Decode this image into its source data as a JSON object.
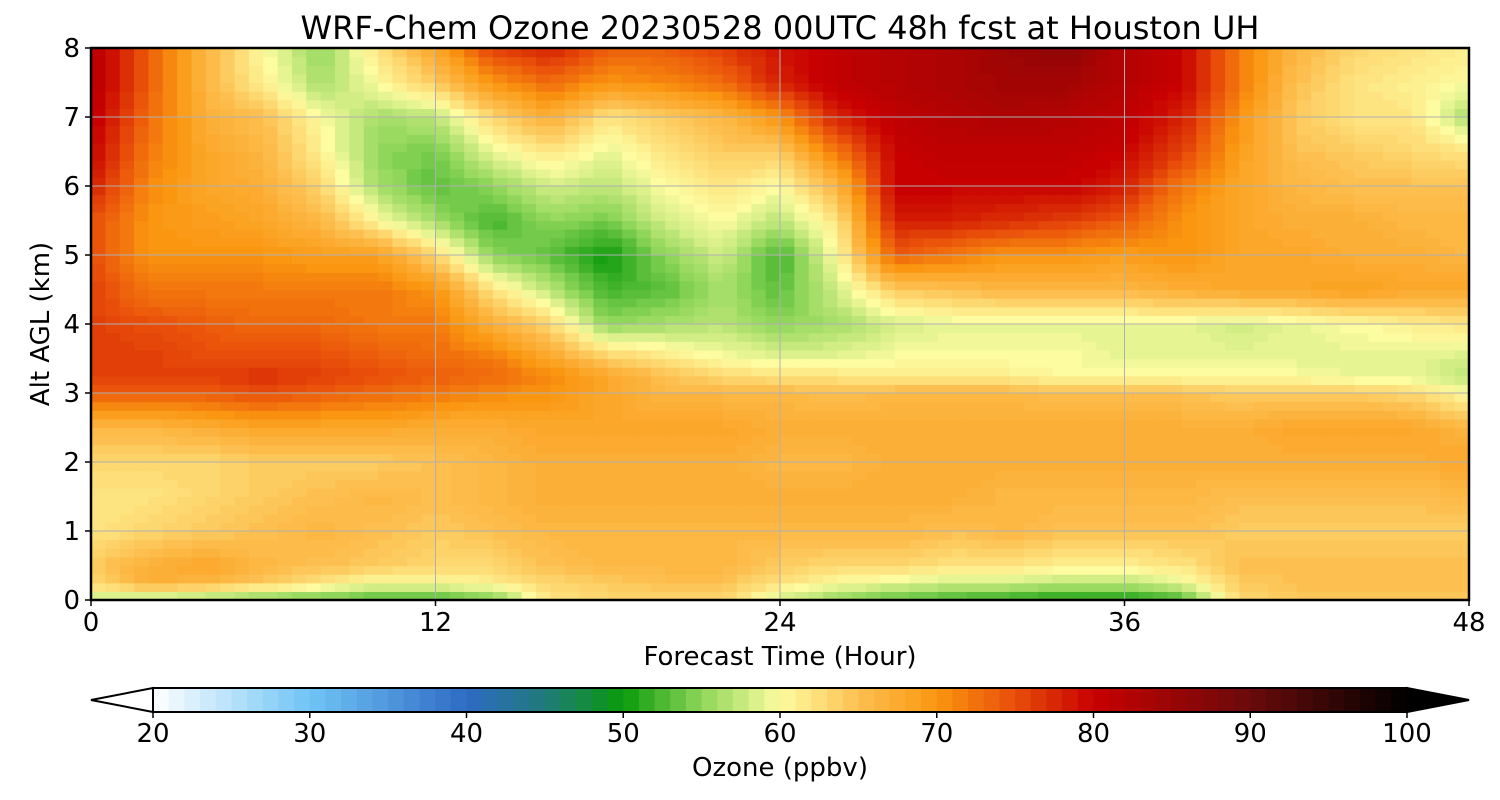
{
  "chart_data": {
    "type": "heatmap",
    "title": "WRF-Chem Ozone  20230528 00UTC 48h fcst at Houston UH",
    "xlabel": "Forecast Time (Hour)",
    "ylabel": "Alt AGL (km)",
    "xlim": [
      0,
      48
    ],
    "ylim": [
      0,
      8
    ],
    "xticks": [
      "0",
      "12",
      "24",
      "36",
      "48"
    ],
    "yticks": [
      "0",
      "1",
      "2",
      "3",
      "4",
      "5",
      "6",
      "7",
      "8"
    ],
    "grid": true,
    "x": [
      0,
      2,
      4,
      6,
      8,
      10,
      12,
      14,
      16,
      18,
      20,
      22,
      24,
      26,
      28,
      30,
      32,
      34,
      36,
      38,
      40,
      42,
      44,
      46,
      48
    ],
    "y": [
      0,
      0.25,
      0.5,
      1,
      1.5,
      2,
      2.5,
      3,
      3.25,
      3.5,
      4,
      4.5,
      5,
      5.5,
      6,
      6.5,
      7,
      7.5,
      8
    ],
    "z": [
      [
        57,
        56,
        55,
        54,
        53,
        52,
        52,
        54,
        62,
        63,
        63,
        63,
        58,
        55,
        53,
        52,
        51,
        50,
        50,
        52,
        63,
        64,
        64,
        64,
        64
      ],
      [
        63,
        67,
        66,
        64,
        62,
        60,
        60,
        61,
        63,
        64,
        65,
        65,
        62,
        60,
        59,
        58,
        58,
        57,
        57,
        59,
        64,
        65,
        65,
        65,
        65
      ],
      [
        64,
        67,
        68,
        66,
        65,
        64,
        63,
        63,
        65,
        66,
        66,
        66,
        64,
        63,
        63,
        62,
        62,
        61,
        61,
        62,
        65,
        65,
        65,
        65,
        65
      ],
      [
        62,
        63,
        64,
        65,
        66,
        65,
        64,
        65,
        66,
        66,
        66,
        66,
        66,
        66,
        66,
        65,
        66,
        65,
        65,
        65,
        64,
        64,
        64,
        64,
        64
      ],
      [
        62,
        62,
        63,
        64,
        65,
        66,
        65,
        66,
        67,
        67,
        67,
        67,
        67,
        67,
        67,
        67,
        66,
        66,
        66,
        66,
        65,
        65,
        65,
        65,
        66
      ],
      [
        63,
        63,
        63,
        64,
        64,
        64,
        65,
        66,
        67,
        67,
        67,
        67,
        66,
        66,
        67,
        67,
        67,
        67,
        67,
        67,
        67,
        67,
        67,
        67,
        68
      ],
      [
        66,
        66,
        67,
        68,
        68,
        68,
        67,
        67,
        68,
        68,
        68,
        68,
        67,
        67,
        67,
        67,
        67,
        67,
        67,
        67,
        67,
        68,
        68,
        68,
        66
      ],
      [
        74,
        74,
        74,
        75,
        74,
        73,
        72,
        71,
        70,
        68,
        66,
        66,
        66,
        65,
        66,
        66,
        66,
        65,
        65,
        65,
        64,
        64,
        64,
        63,
        60
      ],
      [
        76,
        76,
        76,
        77,
        76,
        75,
        74,
        73,
        71,
        68,
        65,
        63,
        62,
        62,
        61,
        61,
        61,
        60,
        60,
        60,
        60,
        60,
        59,
        59,
        57
      ],
      [
        76,
        76,
        75,
        75,
        75,
        74,
        73,
        72,
        68,
        64,
        62,
        60,
        59,
        59,
        60,
        60,
        60,
        60,
        59,
        59,
        59,
        59,
        59,
        59,
        58
      ],
      [
        76,
        75,
        74,
        73,
        73,
        72,
        72,
        67,
        63,
        55,
        56,
        57,
        55,
        56,
        58,
        59,
        59,
        59,
        59,
        59,
        58,
        59,
        60,
        61,
        62
      ],
      [
        76,
        72,
        72,
        72,
        72,
        72,
        70,
        62,
        57,
        52,
        53,
        56,
        53,
        58,
        64,
        65,
        66,
        66,
        66,
        67,
        68,
        68,
        69,
        68,
        68
      ],
      [
        75,
        70,
        70,
        70,
        69,
        69,
        63,
        55,
        53,
        50,
        55,
        58,
        52,
        60,
        74,
        72,
        70,
        70,
        69,
        70,
        68,
        68,
        67,
        67,
        66
      ],
      [
        75,
        70,
        69,
        68,
        66,
        60,
        56,
        52,
        55,
        54,
        58,
        60,
        57,
        62,
        78,
        78,
        77,
        76,
        74,
        70,
        68,
        67,
        67,
        66,
        66
      ],
      [
        78,
        71,
        68,
        67,
        63,
        56,
        53,
        55,
        58,
        57,
        60,
        62,
        60,
        66,
        80,
        80,
        80,
        80,
        78,
        72,
        68,
        66,
        65,
        65,
        65
      ],
      [
        80,
        72,
        68,
        66,
        61,
        55,
        54,
        59,
        62,
        59,
        62,
        64,
        64,
        72,
        80,
        81,
        81,
        81,
        80,
        76,
        69,
        65,
        64,
        63,
        62
      ],
      [
        81,
        73,
        67,
        65,
        60,
        56,
        57,
        63,
        67,
        62,
        64,
        66,
        70,
        78,
        81,
        82,
        83,
        82,
        81,
        78,
        70,
        64,
        62,
        62,
        56
      ],
      [
        82,
        74,
        66,
        61,
        56,
        60,
        64,
        70,
        73,
        70,
        71,
        73,
        78,
        81,
        82,
        83,
        84,
        84,
        82,
        80,
        72,
        65,
        62,
        61,
        60
      ],
      [
        82,
        74,
        66,
        60,
        55,
        62,
        68,
        76,
        78,
        74,
        74,
        76,
        79,
        81,
        82,
        83,
        85,
        86,
        82,
        80,
        72,
        66,
        63,
        62,
        61
      ]
    ],
    "colorbar": {
      "label": "Ozone  (ppbv)",
      "min": 20,
      "max": 100,
      "ticks": [
        "20",
        "30",
        "40",
        "50",
        "60",
        "70",
        "80",
        "90",
        "100"
      ],
      "extend": "both",
      "stops": [
        {
          "v": 20,
          "color": "#ffffff"
        },
        {
          "v": 30,
          "color": "#70c4f5"
        },
        {
          "v": 40,
          "color": "#2f6ac4"
        },
        {
          "v": 45,
          "color": "#1f7a7a"
        },
        {
          "v": 50,
          "color": "#0a9a0a"
        },
        {
          "v": 55,
          "color": "#8fd65a"
        },
        {
          "v": 60,
          "color": "#fdfca0"
        },
        {
          "v": 65,
          "color": "#fdc050"
        },
        {
          "v": 70,
          "color": "#fa9610"
        },
        {
          "v": 75,
          "color": "#e84e0a"
        },
        {
          "v": 80,
          "color": "#c80000"
        },
        {
          "v": 90,
          "color": "#6a0a0a"
        },
        {
          "v": 100,
          "color": "#000000"
        }
      ]
    }
  }
}
